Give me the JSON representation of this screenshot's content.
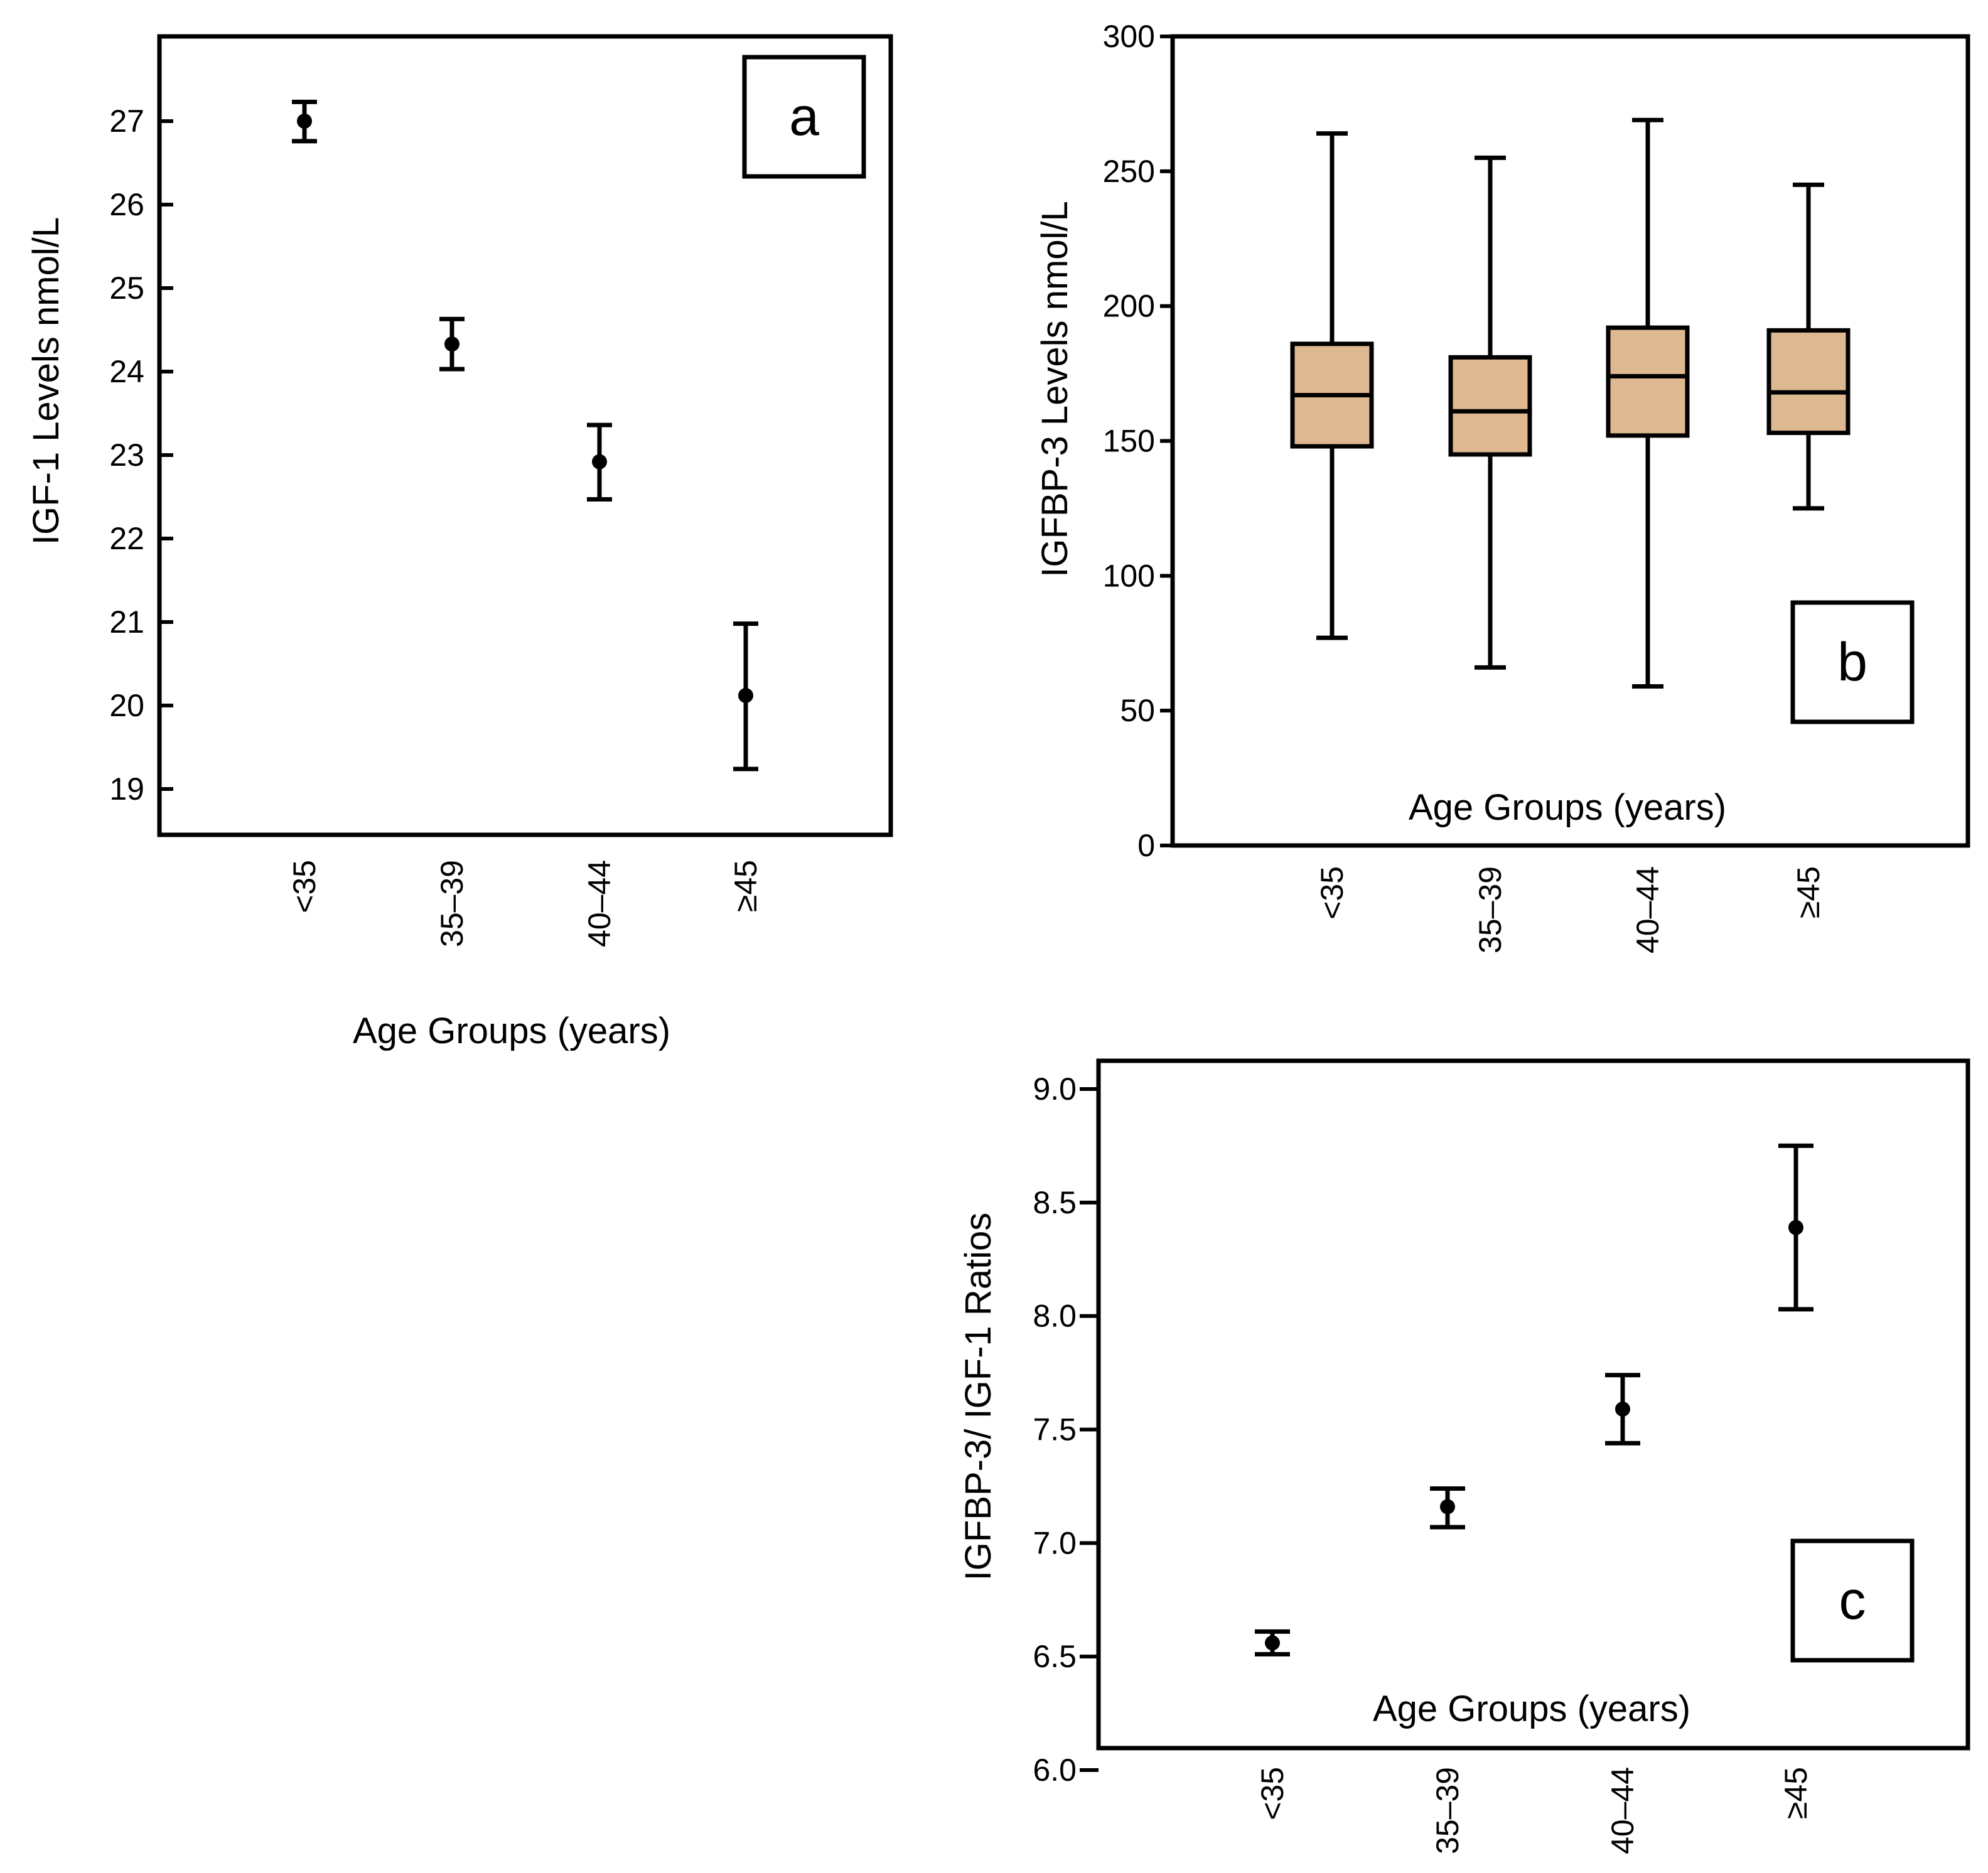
{
  "chart_data": [
    {
      "panel": "a",
      "type": "scatter",
      "error_bars": true,
      "categories": [
        "<35",
        "35–39",
        "40–44",
        "≥45"
      ],
      "values": [
        27.0,
        24.33,
        22.92,
        20.12
      ],
      "lower": [
        26.76,
        24.03,
        22.47,
        19.24
      ],
      "upper": [
        27.23,
        24.63,
        23.36,
        20.98
      ],
      "ylim": [
        18.5,
        28.0
      ],
      "yticks": [
        "19",
        "20",
        "21",
        "22",
        "23",
        "24",
        "25",
        "26",
        "27"
      ],
      "ylabel": "IGF-1 Levels nmol/L",
      "xlabel": "Age Groups (years)",
      "grid": false,
      "label_box": "a"
    },
    {
      "panel": "b",
      "type": "boxplot",
      "categories": [
        "<35",
        "35–39",
        "40–44",
        "≥45"
      ],
      "boxes": [
        {
          "min": 77,
          "q1": 148,
          "median": 167,
          "q3": 186,
          "max": 264
        },
        {
          "min": 66,
          "q1": 145,
          "median": 161,
          "q3": 181,
          "max": 255
        },
        {
          "min": 59,
          "q1": 152,
          "median": 174,
          "q3": 192,
          "max": 269
        },
        {
          "min": 125,
          "q1": 153,
          "median": 168,
          "q3": 191,
          "max": 245
        }
      ],
      "ylim": [
        0,
        300
      ],
      "yticks": [
        "0",
        "50",
        "100",
        "150",
        "200",
        "250",
        "300"
      ],
      "ylabel": "IGFBP-3 Levels nmol/L",
      "xlabel": "Age Groups (years)",
      "box_color": "#deb890",
      "grid": false,
      "label_box": "b"
    },
    {
      "panel": "c",
      "type": "scatter",
      "error_bars": true,
      "categories": [
        "<35",
        "35–39",
        "40–44",
        "≥45"
      ],
      "values": [
        6.56,
        7.16,
        7.59,
        8.39
      ],
      "lower": [
        6.51,
        7.07,
        7.44,
        8.03
      ],
      "upper": [
        6.61,
        7.24,
        7.74,
        8.75
      ],
      "ylim": [
        6.0,
        9.0
      ],
      "yticks": [
        "6.0",
        "6.5",
        "7.0",
        "7.5",
        "8.0",
        "8.5",
        "9.0"
      ],
      "ylabel": "IGFBP-3/ IGF-1 Ratios",
      "xlabel": "Age Groups (years)",
      "grid": false,
      "label_box": "c"
    }
  ]
}
